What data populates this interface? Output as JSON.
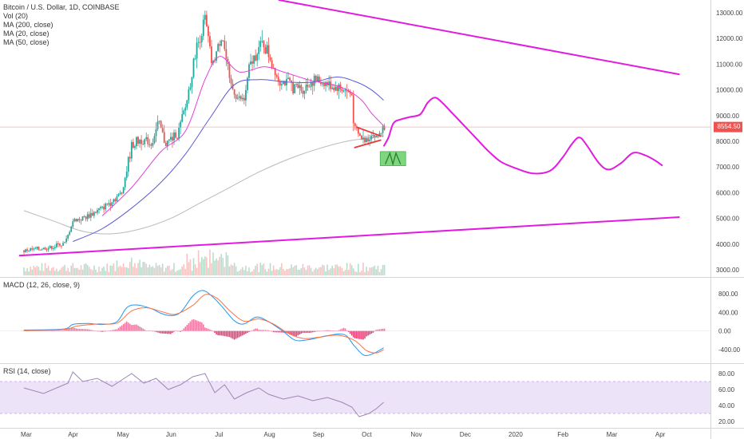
{
  "chart_data": {
    "type": "candlestick",
    "symbol_title": "Bitcoin / U.S. Dollar, 1D, COINBASE",
    "indicators": [
      "Vol (20)",
      "MA (200, close)",
      "MA (20, close)",
      "MA (50, close)"
    ],
    "last_price": "8554.50",
    "price_axis": {
      "min": 3000,
      "max": 13000,
      "ticks": [
        "13000.00",
        "12000.00",
        "11000.00",
        "10000.00",
        "9000.00",
        "8000.00",
        "7000.00",
        "6000.00",
        "5000.00",
        "4000.00",
        "3000.00"
      ]
    },
    "time_axis": [
      "Mar",
      "Apr",
      "May",
      "Jun",
      "Jul",
      "Aug",
      "Sep",
      "Oct",
      "Nov",
      "Dec",
      "2020",
      "Feb",
      "Mar",
      "Apr"
    ],
    "price_path": [
      {
        "t": 0,
        "p": 3750
      },
      {
        "t": 0.3,
        "p": 3800
      },
      {
        "t": 0.6,
        "p": 3900
      },
      {
        "t": 0.85,
        "p": 4050
      },
      {
        "t": 1.0,
        "p": 4900
      },
      {
        "t": 1.3,
        "p": 5100
      },
      {
        "t": 1.6,
        "p": 5400
      },
      {
        "t": 1.8,
        "p": 5700
      },
      {
        "t": 2.0,
        "p": 6000
      },
      {
        "t": 2.2,
        "p": 7800
      },
      {
        "t": 2.4,
        "p": 8100
      },
      {
        "t": 2.6,
        "p": 7900
      },
      {
        "t": 2.75,
        "p": 8700
      },
      {
        "t": 2.9,
        "p": 7900
      },
      {
        "t": 3.0,
        "p": 8100
      },
      {
        "t": 3.15,
        "p": 8300
      },
      {
        "t": 3.3,
        "p": 9300
      },
      {
        "t": 3.5,
        "p": 11400
      },
      {
        "t": 3.7,
        "p": 12800
      },
      {
        "t": 3.85,
        "p": 10900
      },
      {
        "t": 4.05,
        "p": 12200
      },
      {
        "t": 4.2,
        "p": 10300
      },
      {
        "t": 4.35,
        "p": 9700
      },
      {
        "t": 4.5,
        "p": 9600
      },
      {
        "t": 4.6,
        "p": 10800
      },
      {
        "t": 4.75,
        "p": 11500
      },
      {
        "t": 4.9,
        "p": 11800
      },
      {
        "t": 5.0,
        "p": 11400
      },
      {
        "t": 5.2,
        "p": 10400
      },
      {
        "t": 5.45,
        "p": 10200
      },
      {
        "t": 5.7,
        "p": 10000
      },
      {
        "t": 5.9,
        "p": 10400
      },
      {
        "t": 6.1,
        "p": 10300
      },
      {
        "t": 6.35,
        "p": 10100
      },
      {
        "t": 6.55,
        "p": 10000
      },
      {
        "t": 6.7,
        "p": 9800
      },
      {
        "t": 6.75,
        "p": 8450
      },
      {
        "t": 6.95,
        "p": 8000
      },
      {
        "t": 7.1,
        "p": 8300
      },
      {
        "t": 7.2,
        "p": 8150
      },
      {
        "t": 7.35,
        "p": 8554
      }
    ],
    "ma20_path": [
      {
        "t": 1.6,
        "p": 5100
      },
      {
        "t": 2.2,
        "p": 6200
      },
      {
        "t": 2.8,
        "p": 7600
      },
      {
        "t": 3.3,
        "p": 8400
      },
      {
        "t": 3.7,
        "p": 10400
      },
      {
        "t": 4.0,
        "p": 11300
      },
      {
        "t": 4.4,
        "p": 10700
      },
      {
        "t": 4.9,
        "p": 10900
      },
      {
        "t": 5.3,
        "p": 10700
      },
      {
        "t": 5.8,
        "p": 10400
      },
      {
        "t": 6.3,
        "p": 10200
      },
      {
        "t": 6.6,
        "p": 10000
      },
      {
        "t": 6.9,
        "p": 9600
      },
      {
        "t": 7.1,
        "p": 9100
      },
      {
        "t": 7.35,
        "p": 8600
      }
    ],
    "ma50_path": [
      {
        "t": 1.0,
        "p": 4100
      },
      {
        "t": 1.6,
        "p": 4600
      },
      {
        "t": 2.2,
        "p": 5400
      },
      {
        "t": 2.8,
        "p": 6400
      },
      {
        "t": 3.3,
        "p": 7500
      },
      {
        "t": 3.8,
        "p": 8900
      },
      {
        "t": 4.3,
        "p": 10200
      },
      {
        "t": 4.8,
        "p": 10400
      },
      {
        "t": 5.4,
        "p": 10300
      },
      {
        "t": 5.9,
        "p": 10300
      },
      {
        "t": 6.4,
        "p": 10500
      },
      {
        "t": 6.8,
        "p": 10300
      },
      {
        "t": 7.1,
        "p": 10000
      },
      {
        "t": 7.35,
        "p": 9600
      }
    ],
    "ma200_path": [
      {
        "t": 0,
        "p": 5300
      },
      {
        "t": 0.6,
        "p": 4900
      },
      {
        "t": 1.2,
        "p": 4500
      },
      {
        "t": 1.8,
        "p": 4400
      },
      {
        "t": 2.4,
        "p": 4600
      },
      {
        "t": 3.0,
        "p": 5000
      },
      {
        "t": 3.6,
        "p": 5600
      },
      {
        "t": 4.2,
        "p": 6200
      },
      {
        "t": 4.8,
        "p": 6800
      },
      {
        "t": 5.4,
        "p": 7300
      },
      {
        "t": 6.0,
        "p": 7700
      },
      {
        "t": 6.6,
        "p": 8000
      },
      {
        "t": 7.35,
        "p": 8200
      }
    ],
    "trendline_upper": [
      {
        "t": 5.2,
        "p": 13500
      },
      {
        "t": 13.4,
        "p": 10600
      }
    ],
    "trendline_lower": [
      {
        "t": -0.1,
        "p": 3550
      },
      {
        "t": 13.4,
        "p": 5050
      }
    ],
    "triangle_top": [
      {
        "t": 6.8,
        "p": 8550
      },
      {
        "t": 7.3,
        "p": 8200
      }
    ],
    "triangle_bottom": [
      {
        "t": 6.75,
        "p": 7750
      },
      {
        "t": 7.3,
        "p": 8050
      }
    ],
    "projection_path": [
      {
        "t": 7.35,
        "p": 7800
      },
      {
        "t": 7.45,
        "p": 8150
      },
      {
        "t": 7.55,
        "p": 8700
      },
      {
        "t": 7.7,
        "p": 8850
      },
      {
        "t": 7.9,
        "p": 8950
      },
      {
        "t": 8.1,
        "p": 9050
      },
      {
        "t": 8.25,
        "p": 9500
      },
      {
        "t": 8.4,
        "p": 9700
      },
      {
        "t": 8.55,
        "p": 9500
      },
      {
        "t": 8.75,
        "p": 9100
      },
      {
        "t": 9.0,
        "p": 8600
      },
      {
        "t": 9.25,
        "p": 8100
      },
      {
        "t": 9.5,
        "p": 7600
      },
      {
        "t": 9.75,
        "p": 7200
      },
      {
        "t": 10.05,
        "p": 6950
      },
      {
        "t": 10.4,
        "p": 6750
      },
      {
        "t": 10.75,
        "p": 6850
      },
      {
        "t": 11.0,
        "p": 7350
      },
      {
        "t": 11.2,
        "p": 7900
      },
      {
        "t": 11.35,
        "p": 8150
      },
      {
        "t": 11.5,
        "p": 7850
      },
      {
        "t": 11.75,
        "p": 7150
      },
      {
        "t": 11.95,
        "p": 6900
      },
      {
        "t": 12.2,
        "p": 7150
      },
      {
        "t": 12.45,
        "p": 7550
      },
      {
        "t": 12.7,
        "p": 7450
      },
      {
        "t": 12.9,
        "p": 7250
      },
      {
        "t": 13.05,
        "p": 7050
      }
    ],
    "projection_box": {
      "t1": 7.28,
      "t2": 7.8,
      "p1": 7600,
      "p2": 7050
    },
    "macd": {
      "label": "MACD (12, 26, close, 9)",
      "range": [
        -600,
        1000
      ],
      "ticks": [
        "800.00",
        "400.00",
        "0.00",
        "-400.00"
      ],
      "macd_line": [
        {
          "t": 0,
          "v": 20
        },
        {
          "t": 0.8,
          "v": 40
        },
        {
          "t": 1.0,
          "v": 140
        },
        {
          "t": 1.3,
          "v": 160
        },
        {
          "t": 1.6,
          "v": 140
        },
        {
          "t": 1.9,
          "v": 200
        },
        {
          "t": 2.1,
          "v": 500
        },
        {
          "t": 2.3,
          "v": 560
        },
        {
          "t": 2.6,
          "v": 480
        },
        {
          "t": 2.8,
          "v": 380
        },
        {
          "t": 3.0,
          "v": 330
        },
        {
          "t": 3.2,
          "v": 400
        },
        {
          "t": 3.45,
          "v": 750
        },
        {
          "t": 3.65,
          "v": 870
        },
        {
          "t": 3.85,
          "v": 740
        },
        {
          "t": 4.05,
          "v": 520
        },
        {
          "t": 4.3,
          "v": 220
        },
        {
          "t": 4.5,
          "v": 150
        },
        {
          "t": 4.75,
          "v": 300
        },
        {
          "t": 5.0,
          "v": 200
        },
        {
          "t": 5.3,
          "v": -10
        },
        {
          "t": 5.55,
          "v": -200
        },
        {
          "t": 5.85,
          "v": -180
        },
        {
          "t": 6.2,
          "v": -100
        },
        {
          "t": 6.55,
          "v": -80
        },
        {
          "t": 6.75,
          "v": -320
        },
        {
          "t": 6.95,
          "v": -520
        },
        {
          "t": 7.15,
          "v": -480
        },
        {
          "t": 7.35,
          "v": -360
        }
      ],
      "signal_line": [
        {
          "t": 0,
          "v": 10
        },
        {
          "t": 0.8,
          "v": 30
        },
        {
          "t": 1.1,
          "v": 110
        },
        {
          "t": 1.5,
          "v": 150
        },
        {
          "t": 1.9,
          "v": 170
        },
        {
          "t": 2.2,
          "v": 430
        },
        {
          "t": 2.5,
          "v": 500
        },
        {
          "t": 2.8,
          "v": 420
        },
        {
          "t": 3.1,
          "v": 360
        },
        {
          "t": 3.45,
          "v": 550
        },
        {
          "t": 3.7,
          "v": 780
        },
        {
          "t": 3.95,
          "v": 700
        },
        {
          "t": 4.2,
          "v": 440
        },
        {
          "t": 4.5,
          "v": 210
        },
        {
          "t": 4.8,
          "v": 260
        },
        {
          "t": 5.1,
          "v": 150
        },
        {
          "t": 5.4,
          "v": -50
        },
        {
          "t": 5.7,
          "v": -160
        },
        {
          "t": 6.0,
          "v": -140
        },
        {
          "t": 6.4,
          "v": -90
        },
        {
          "t": 6.75,
          "v": -200
        },
        {
          "t": 7.0,
          "v": -420
        },
        {
          "t": 7.2,
          "v": -470
        },
        {
          "t": 7.35,
          "v": -400
        }
      ]
    },
    "rsi": {
      "label": "RSI (14, close)",
      "range": [
        15,
        90
      ],
      "band": [
        30,
        70
      ],
      "ticks": [
        "80.00",
        "60.00",
        "40.00",
        "20.00"
      ],
      "series": [
        {
          "t": 0,
          "v": 62
        },
        {
          "t": 0.4,
          "v": 55
        },
        {
          "t": 0.9,
          "v": 68
        },
        {
          "t": 1.0,
          "v": 82
        },
        {
          "t": 1.2,
          "v": 70
        },
        {
          "t": 1.5,
          "v": 74
        },
        {
          "t": 1.8,
          "v": 64
        },
        {
          "t": 2.0,
          "v": 72
        },
        {
          "t": 2.2,
          "v": 80
        },
        {
          "t": 2.45,
          "v": 68
        },
        {
          "t": 2.7,
          "v": 74
        },
        {
          "t": 2.95,
          "v": 60
        },
        {
          "t": 3.2,
          "v": 66
        },
        {
          "t": 3.45,
          "v": 76
        },
        {
          "t": 3.7,
          "v": 80
        },
        {
          "t": 3.9,
          "v": 56
        },
        {
          "t": 4.1,
          "v": 66
        },
        {
          "t": 4.3,
          "v": 48
        },
        {
          "t": 4.55,
          "v": 56
        },
        {
          "t": 4.8,
          "v": 62
        },
        {
          "t": 5.0,
          "v": 54
        },
        {
          "t": 5.3,
          "v": 48
        },
        {
          "t": 5.6,
          "v": 52
        },
        {
          "t": 5.9,
          "v": 46
        },
        {
          "t": 6.2,
          "v": 50
        },
        {
          "t": 6.5,
          "v": 44
        },
        {
          "t": 6.7,
          "v": 38
        },
        {
          "t": 6.85,
          "v": 26
        },
        {
          "t": 7.05,
          "v": 30
        },
        {
          "t": 7.2,
          "v": 36
        },
        {
          "t": 7.35,
          "v": 44
        }
      ]
    },
    "colors": {
      "up": "#26a69a",
      "down": "#ef5350",
      "ma20": "#e53edb",
      "ma50": "#5b5bd6",
      "ma200": "#b9b9c0",
      "trend": "#e21be0",
      "triangle": "#e53935",
      "box_fill": "#7ed67e",
      "macd_line": "#2196f3",
      "signal_line": "#ff7043",
      "rsi_line": "#9f84b5",
      "rsi_band": "#ede3f9",
      "price_line": "#ef9a9a"
    }
  }
}
